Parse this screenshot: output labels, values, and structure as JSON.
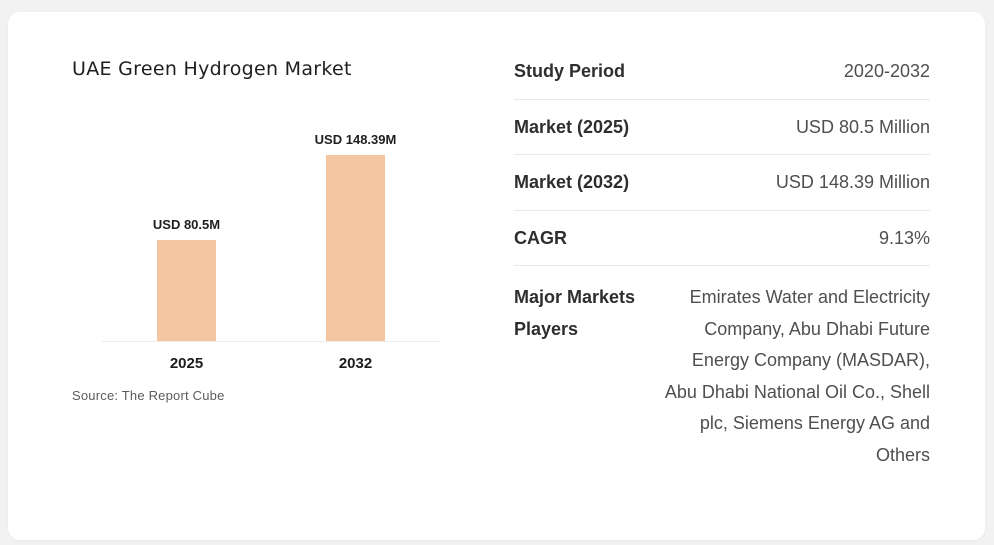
{
  "page": {
    "background": "#f2f2f2",
    "card_background": "#ffffff"
  },
  "chart": {
    "title": "UAE Green Hydrogen Market",
    "source": "Source: The Report Cube"
  },
  "chart_data": {
    "type": "bar",
    "title": "UAE Green Hydrogen Market",
    "categories": [
      "2025",
      "2032"
    ],
    "values": [
      80.5,
      148.39
    ],
    "bar_labels": [
      "USD 80.5M",
      "USD 148.39M"
    ],
    "xlabel": "",
    "ylabel": "",
    "ylim": [
      0,
      160
    ],
    "bar_color": "#f4c5a1",
    "grid": false,
    "legend": false,
    "source": "Source: The Report Cube"
  },
  "info_table": {
    "rows": [
      {
        "label": "Study Period",
        "value": "2020-2032"
      },
      {
        "label": "Market (2025)",
        "value": "USD 80.5 Million"
      },
      {
        "label": "Market (2032)",
        "value": "USD 148.39 Million"
      },
      {
        "label": "CAGR",
        "value": "9.13%"
      },
      {
        "label": "Major Markets Players",
        "value": "Emirates Water and Electricity Company, Abu Dhabi Future Energy Company (MASDAR), Abu Dhabi National Oil Co., Shell plc, Siemens Energy AG and Others"
      }
    ]
  }
}
